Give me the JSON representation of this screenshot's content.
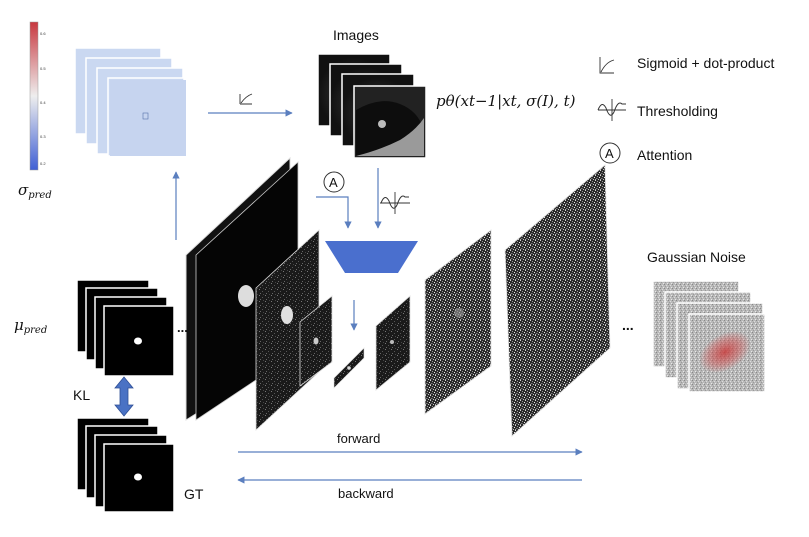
{
  "colorbar": {
    "ticks": [
      "0.6",
      "0.5",
      "0.4",
      "0.3",
      "0.2"
    ],
    "colors": {
      "high": "#c8383f",
      "mid": "#eeeeee",
      "low": "#3f5fd4"
    }
  },
  "labels": {
    "sigma_base": "σ",
    "sigma_sub": "pred",
    "mu_base": "μ",
    "mu_sub": "pred",
    "kl": "KL",
    "gt": "GT",
    "images": "Images",
    "gaussian_noise": "Gaussian Noise",
    "forward": "forward",
    "backward": "backward",
    "ellipsis": "...",
    "formula": "pθ(xt−1|xt, σ(I), t)"
  },
  "legend": {
    "sigmoid": "Sigmoid + dot-product",
    "threshold": "Thresholding",
    "attention": "Attention",
    "attention_symbol": "A"
  },
  "colors": {
    "arrow": "#5b7fbf",
    "bottleneck": "#4a6fce",
    "kl_arrow": "#4a72c4",
    "sigma_map": "#cad8f1",
    "noise_blob": "#c83a3a"
  }
}
